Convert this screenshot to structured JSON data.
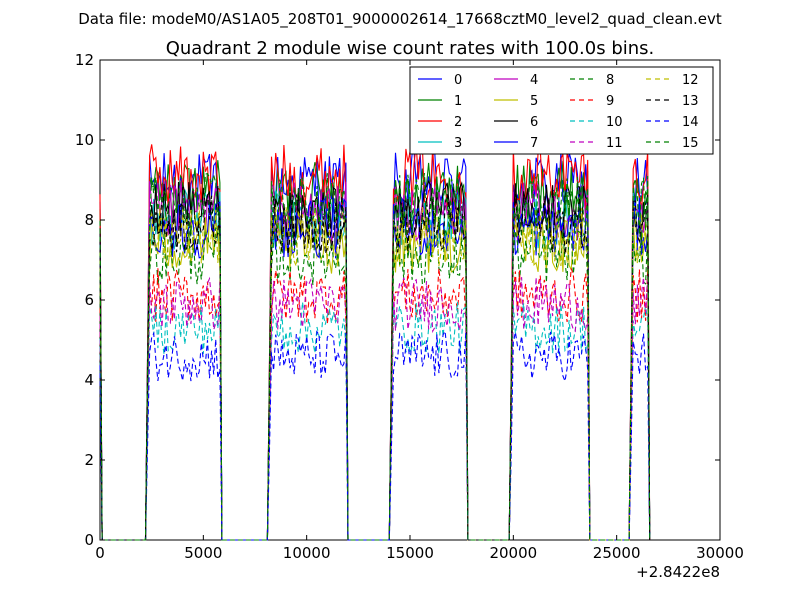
{
  "chart_data": {
    "type": "line",
    "suptitle": "Data file: modeM0/AS1A05_208T01_9000002614_17668cztM0_level2_quad_clean.evt",
    "title": "Quadrant 2 module wise count rates with 100.0s bins.",
    "xlabel": "",
    "ylabel": "",
    "x_offset_label": "+2.8422e8",
    "xlim": [
      0,
      30000
    ],
    "ylim": [
      0,
      12
    ],
    "xticks": [
      0,
      5000,
      10000,
      15000,
      20000,
      25000,
      30000
    ],
    "yticks": [
      0,
      2,
      4,
      6,
      8,
      10,
      12
    ],
    "bin_seconds": 100.0,
    "legend_position": "top-right",
    "grid": false,
    "segments": [
      {
        "start": 0,
        "end": 100
      },
      {
        "start": 2300,
        "end": 5800
      },
      {
        "start": 8200,
        "end": 11900
      },
      {
        "start": 14100,
        "end": 17700
      },
      {
        "start": 19900,
        "end": 23600
      },
      {
        "start": 25700,
        "end": 26500
      }
    ],
    "series": [
      {
        "name": "0",
        "color": "#0000ff",
        "style": "solid",
        "mean": 8.9
      },
      {
        "name": "1",
        "color": "#008000",
        "style": "solid",
        "mean": 8.7
      },
      {
        "name": "2",
        "color": "#ff0000",
        "style": "solid",
        "mean": 9.1
      },
      {
        "name": "3",
        "color": "#00bfbf",
        "style": "solid",
        "mean": 8.0
      },
      {
        "name": "4",
        "color": "#bf00bf",
        "style": "solid",
        "mean": 8.2
      },
      {
        "name": "5",
        "color": "#bfbf00",
        "style": "solid",
        "mean": 7.4
      },
      {
        "name": "6",
        "color": "#000000",
        "style": "solid",
        "mean": 8.2
      },
      {
        "name": "7",
        "color": "#0000ff",
        "style": "solid",
        "mean": 7.8
      },
      {
        "name": "8",
        "color": "#008000",
        "style": "dashed",
        "mean": 7.1
      },
      {
        "name": "9",
        "color": "#ff0000",
        "style": "dashed",
        "mean": 6.1
      },
      {
        "name": "10",
        "color": "#00bfbf",
        "style": "dashed",
        "mean": 5.3
      },
      {
        "name": "11",
        "color": "#bf00bf",
        "style": "dashed",
        "mean": 5.9
      },
      {
        "name": "12",
        "color": "#bfbf00",
        "style": "dashed",
        "mean": 7.6
      },
      {
        "name": "13",
        "color": "#000000",
        "style": "dashed",
        "mean": 7.9
      },
      {
        "name": "14",
        "color": "#0000ff",
        "style": "dashed",
        "mean": 4.6
      },
      {
        "name": "15",
        "color": "#008000",
        "style": "dashed",
        "mean": 8.4
      }
    ]
  }
}
